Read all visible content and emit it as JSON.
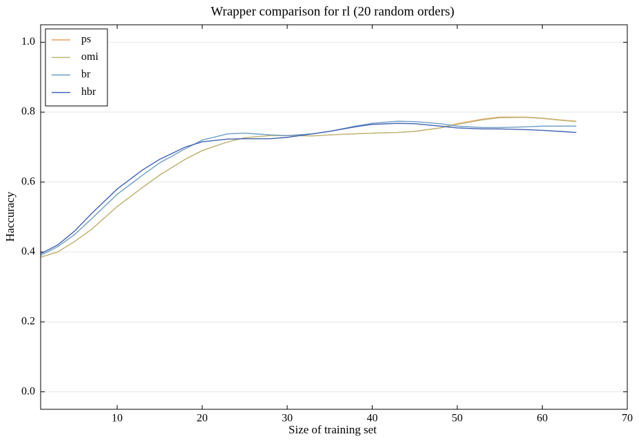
{
  "chart_data": {
    "type": "line",
    "title": "Wrapper comparison for rl (20 random orders)",
    "x_label": "Size of training set",
    "y_label": "Haccuracy",
    "x": [
      1,
      3,
      5,
      7,
      10,
      13,
      15,
      18,
      20,
      23,
      25,
      28,
      30,
      33,
      35,
      38,
      40,
      43,
      45,
      48,
      50,
      53,
      55,
      58,
      60,
      62,
      64
    ],
    "series": [
      {
        "name": "ps",
        "color": "#e8a05c",
        "values": [
          0.385,
          0.4,
          0.43,
          0.465,
          0.53,
          0.585,
          0.62,
          0.665,
          0.69,
          0.715,
          0.727,
          0.733,
          0.733,
          0.732,
          0.735,
          0.738,
          0.74,
          0.742,
          0.745,
          0.755,
          0.767,
          0.78,
          0.786,
          0.786,
          0.783,
          0.778,
          0.774
        ]
      },
      {
        "name": "omi",
        "color": "#bcb87a",
        "values": [
          0.385,
          0.4,
          0.43,
          0.465,
          0.53,
          0.585,
          0.62,
          0.665,
          0.69,
          0.715,
          0.727,
          0.733,
          0.733,
          0.732,
          0.735,
          0.738,
          0.74,
          0.742,
          0.745,
          0.755,
          0.765,
          0.778,
          0.784,
          0.785,
          0.782,
          0.777,
          0.773
        ]
      },
      {
        "name": "br",
        "color": "#6d9ec6",
        "values": [
          0.39,
          0.415,
          0.45,
          0.495,
          0.565,
          0.62,
          0.655,
          0.695,
          0.72,
          0.738,
          0.74,
          0.735,
          0.733,
          0.738,
          0.745,
          0.76,
          0.768,
          0.774,
          0.773,
          0.767,
          0.76,
          0.756,
          0.756,
          0.758,
          0.76,
          0.76,
          0.76
        ]
      },
      {
        "name": "hbr",
        "color": "#4062b2",
        "values": [
          0.395,
          0.42,
          0.46,
          0.51,
          0.58,
          0.635,
          0.665,
          0.7,
          0.715,
          0.723,
          0.724,
          0.724,
          0.728,
          0.738,
          0.745,
          0.758,
          0.765,
          0.768,
          0.767,
          0.76,
          0.755,
          0.752,
          0.752,
          0.75,
          0.748,
          0.745,
          0.742
        ]
      }
    ],
    "xlim": [
      1,
      70
    ],
    "ylim": [
      -0.05,
      1.05
    ],
    "xticks": [
      10,
      20,
      30,
      40,
      50,
      60,
      70
    ],
    "yticks": [
      {
        "value": 0,
        "label": "0.0"
      },
      0.2,
      0.4,
      0.6,
      0.8,
      {
        "value": 1,
        "label": "1.0"
      }
    ],
    "grid": true,
    "legend": "upper left"
  }
}
